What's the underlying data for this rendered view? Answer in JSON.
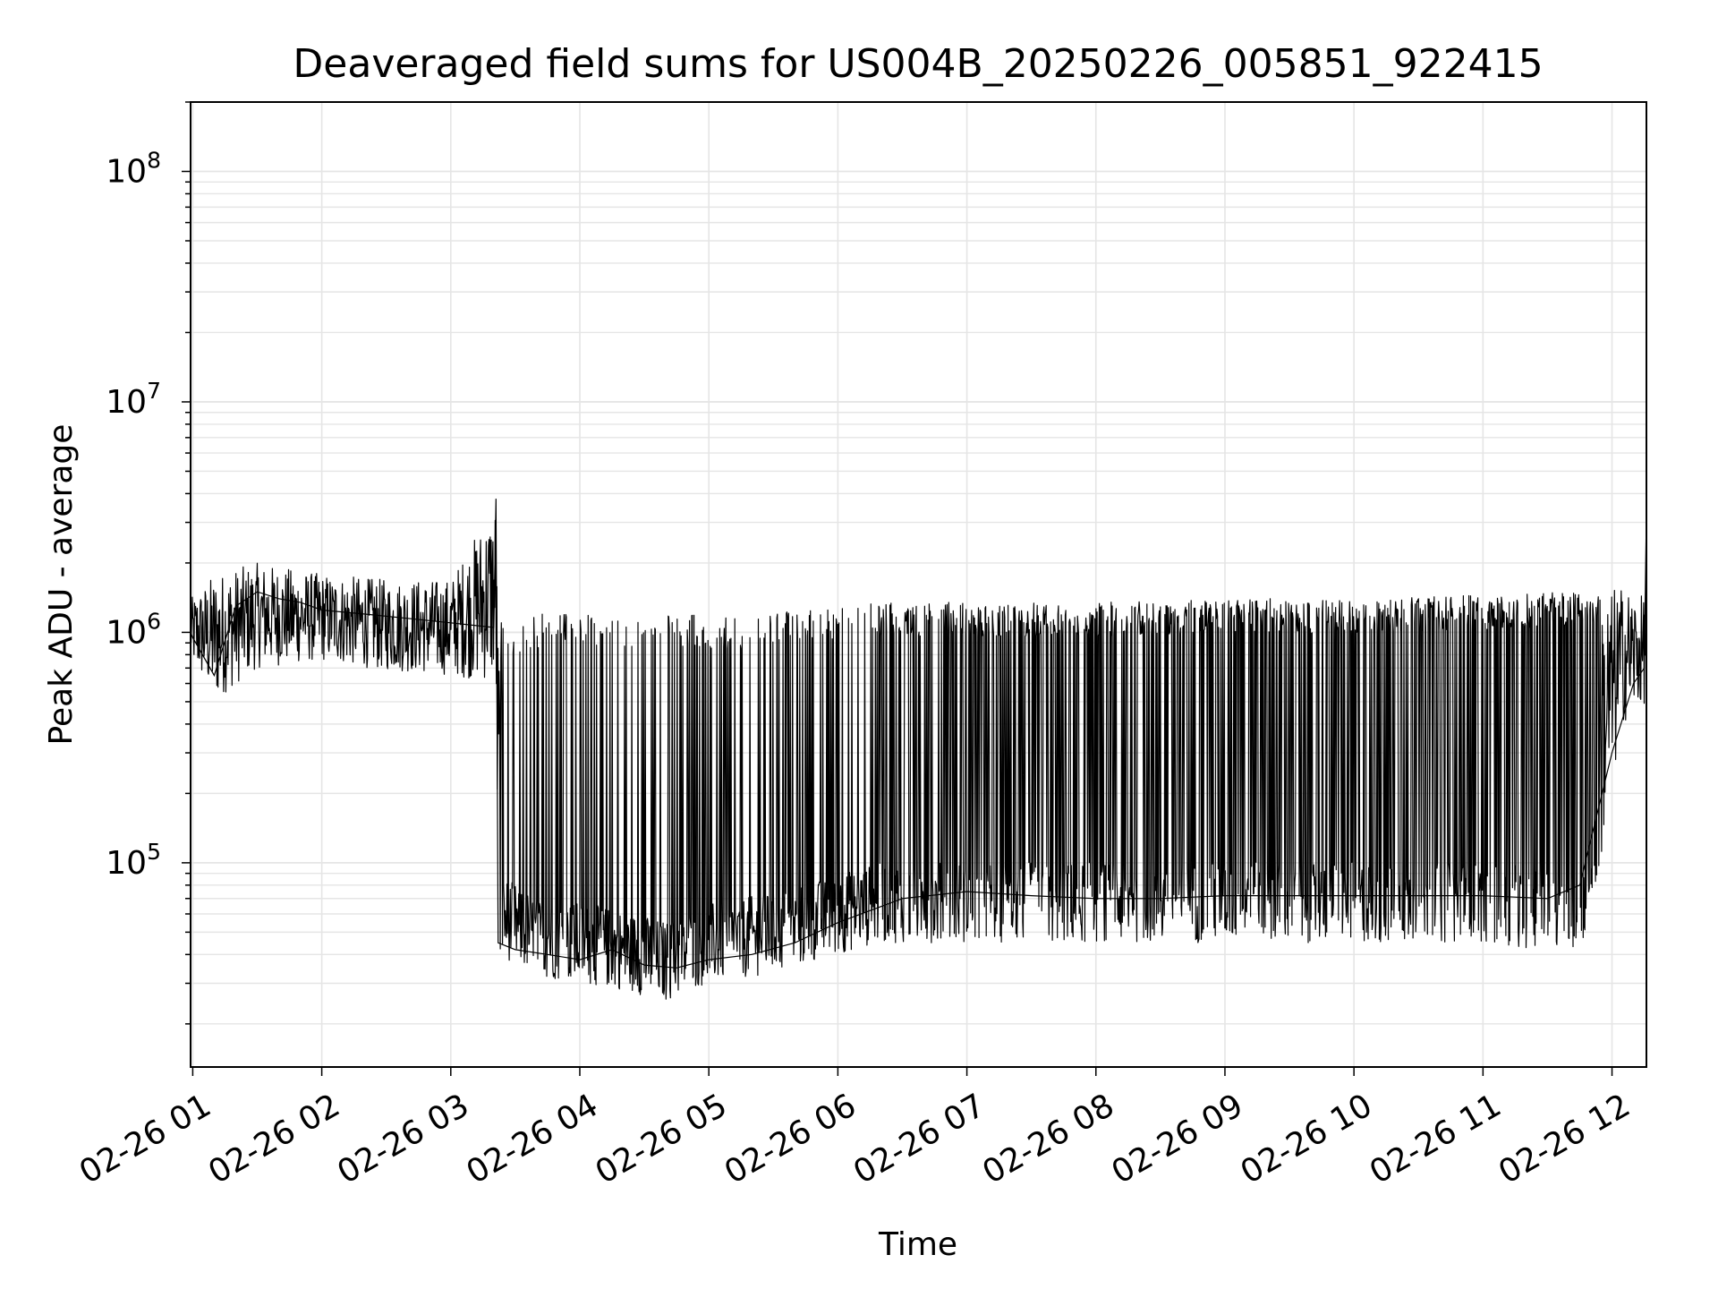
{
  "chart_data": {
    "type": "line",
    "title": "Deaveraged field sums for US004B_20250226_005851_922415",
    "xlabel": "Time",
    "ylabel": "Peak ADU - average",
    "y_scale": "log",
    "ylim": [
      13000,
      200000000
    ],
    "xlim": [
      "02-26 00:59",
      "02-26 12:16"
    ],
    "grid": "major and minor, light gray",
    "x_ticks": [
      "02-26 01",
      "02-26 02",
      "02-26 03",
      "02-26 04",
      "02-26 05",
      "02-26 06",
      "02-26 07",
      "02-26 08",
      "02-26 09",
      "02-26 10",
      "02-26 11",
      "02-26 12"
    ],
    "x_tick_hours": [
      1,
      2,
      3,
      4,
      5,
      6,
      7,
      8,
      9,
      10,
      11,
      12
    ],
    "y_ticks": [
      {
        "base": "10",
        "exp": "5",
        "value": 100000
      },
      {
        "base": "10",
        "exp": "6",
        "value": 1000000
      },
      {
        "base": "10",
        "exp": "7",
        "value": 10000000
      },
      {
        "base": "10",
        "exp": "8",
        "value": 100000000
      }
    ],
    "line_color": "#000000",
    "grid_color": "#e5e5e5",
    "series": [
      {
        "x": [
          "02-26 00:59",
          "02-26 01:00",
          "02-26 01:10",
          "02-26 01:20",
          "02-26 01:30",
          "02-26 01:40",
          "02-26 01:50",
          "02-26 02:00",
          "02-26 02:20",
          "02-26 02:40",
          "02-26 03:00",
          "02-26 03:20",
          "02-26 03:21",
          "02-26 03:22",
          "02-26 03:30",
          "02-26 03:45",
          "02-26 04:00",
          "02-26 04:15",
          "02-26 04:30",
          "02-26 04:45",
          "02-26 05:00",
          "02-26 05:20",
          "02-26 05:40",
          "02-26 06:00",
          "02-26 06:30",
          "02-26 07:00",
          "02-26 07:30",
          "02-26 08:00",
          "02-26 08:30",
          "02-26 09:00",
          "02-26 09:30",
          "02-26 10:00",
          "02-26 10:30",
          "02-26 11:00",
          "02-26 11:30",
          "02-26 11:45",
          "02-26 12:00",
          "02-26 12:10",
          "02-26 12:15",
          "02-26 12:16"
        ],
        "y": [
          1000000,
          950000,
          650000,
          1300000,
          1500000,
          1400000,
          1350000,
          1250000,
          1200000,
          1150000,
          1100000,
          1050000,
          3800000,
          45000,
          42000,
          40000,
          38000,
          42000,
          36000,
          35000,
          38000,
          40000,
          45000,
          55000,
          70000,
          75000,
          72000,
          70000,
          70000,
          72000,
          72000,
          72000,
          72000,
          72000,
          70000,
          80000,
          300000,
          600000,
          700000,
          3300000
        ],
        "y_band": {
          "x": [
            "02-26 00:59",
            "02-26 01:10",
            "02-26 01:30",
            "02-26 02:00",
            "02-26 02:30",
            "02-26 03:00",
            "02-26 03:21",
            "02-26 03:22",
            "02-26 03:40",
            "02-26 04:00",
            "02-26 04:20",
            "02-26 04:40",
            "02-26 05:00",
            "02-26 05:20",
            "02-26 05:40",
            "02-26 06:00",
            "02-26 06:20",
            "02-26 07:00",
            "02-26 08:00",
            "02-26 09:00",
            "02-26 10:00",
            "02-26 11:00",
            "02-26 11:45",
            "02-26 11:55",
            "02-26 12:05",
            "02-26 12:16"
          ],
          "high": [
            1400000,
            1800000,
            2000000,
            1800000,
            1700000,
            1700000,
            3800000,
            1100000,
            1200000,
            1200000,
            1200000,
            1200000,
            1200000,
            1200000,
            1300000,
            1300000,
            1350000,
            1350000,
            1350000,
            1400000,
            1400000,
            1450000,
            1500000,
            1550000,
            1600000,
            1400000
          ],
          "low": [
            750000,
            500000,
            700000,
            750000,
            680000,
            650000,
            600000,
            40000,
            32000,
            30000,
            28000,
            25000,
            30000,
            32000,
            35000,
            40000,
            45000,
            45000,
            45000,
            45000,
            45000,
            45000,
            40000,
            100000,
            400000,
            500000
          ]
        }
      }
    ]
  }
}
